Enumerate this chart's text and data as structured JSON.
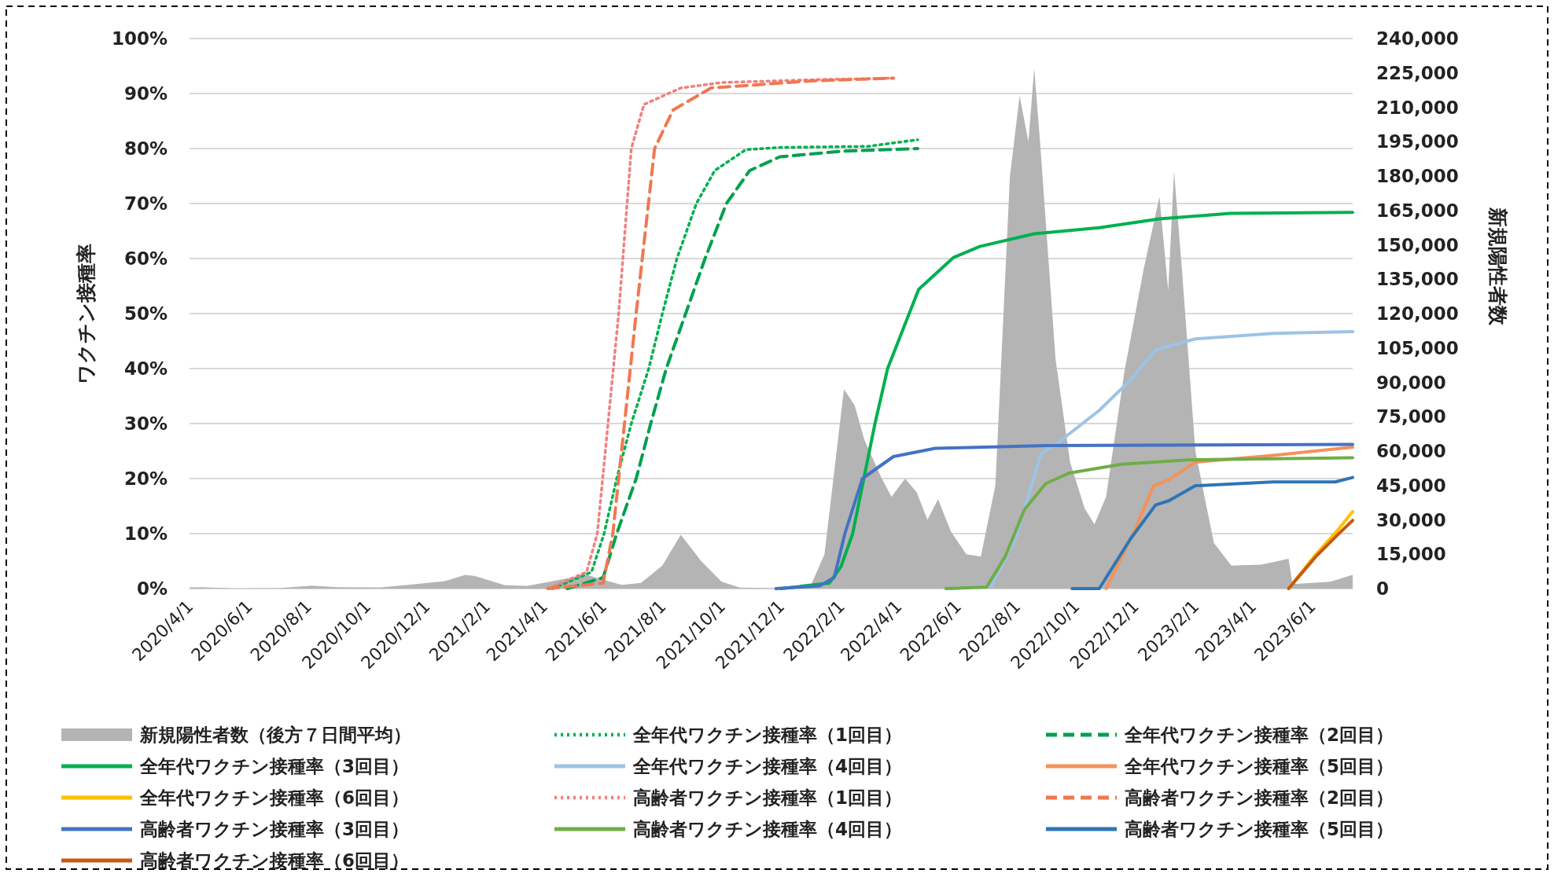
{
  "chart_data": {
    "type": "line",
    "ylabel": "ワクチン接種率",
    "y2label": "新規陽性者数",
    "grid": "y",
    "legend": "bottom",
    "xlim": [
      "2020-04-01",
      "2023-07-13"
    ],
    "xticks": [
      {
        "value": "2020-04-01",
        "label": "2020/4/1"
      },
      {
        "value": "2020-06-01",
        "label": "2020/6/1"
      },
      {
        "value": "2020-08-01",
        "label": "2020/8/1"
      },
      {
        "value": "2020-10-01",
        "label": "2020/10/1"
      },
      {
        "value": "2020-12-01",
        "label": "2020/12/1"
      },
      {
        "value": "2021-02-01",
        "label": "2021/2/1"
      },
      {
        "value": "2021-04-01",
        "label": "2021/4/1"
      },
      {
        "value": "2021-06-01",
        "label": "2021/6/1"
      },
      {
        "value": "2021-08-01",
        "label": "2021/8/1"
      },
      {
        "value": "2021-10-01",
        "label": "2021/10/1"
      },
      {
        "value": "2021-12-01",
        "label": "2021/12/1"
      },
      {
        "value": "2022-02-01",
        "label": "2022/2/1"
      },
      {
        "value": "2022-04-01",
        "label": "2022/4/1"
      },
      {
        "value": "2022-06-01",
        "label": "2022/6/1"
      },
      {
        "value": "2022-08-01",
        "label": "2022/8/1"
      },
      {
        "value": "2022-10-01",
        "label": "2022/10/1"
      },
      {
        "value": "2022-12-01",
        "label": "2022/12/1"
      },
      {
        "value": "2023-02-01",
        "label": "2023/2/1"
      },
      {
        "value": "2023-04-01",
        "label": "2023/4/1"
      },
      {
        "value": "2023-06-01",
        "label": "2023/6/1"
      }
    ],
    "ylim": [
      0,
      100
    ],
    "yticks": [
      {
        "value": 0,
        "label": "0%"
      },
      {
        "value": 10,
        "label": "10%"
      },
      {
        "value": 20,
        "label": "20%"
      },
      {
        "value": 30,
        "label": "30%"
      },
      {
        "value": 40,
        "label": "40%"
      },
      {
        "value": 50,
        "label": "50%"
      },
      {
        "value": 60,
        "label": "60%"
      },
      {
        "value": 70,
        "label": "70%"
      },
      {
        "value": 80,
        "label": "80%"
      },
      {
        "value": 90,
        "label": "90%"
      },
      {
        "value": 100,
        "label": "100%"
      }
    ],
    "y2lim": [
      0,
      240000
    ],
    "y2ticks": [
      {
        "value": 0,
        "label": "0"
      },
      {
        "value": 15000,
        "label": "15,000"
      },
      {
        "value": 30000,
        "label": "30,000"
      },
      {
        "value": 45000,
        "label": "45,000"
      },
      {
        "value": 60000,
        "label": "60,000"
      },
      {
        "value": 75000,
        "label": "75,000"
      },
      {
        "value": 90000,
        "label": "90,000"
      },
      {
        "value": 105000,
        "label": "105,000"
      },
      {
        "value": 120000,
        "label": "120,000"
      },
      {
        "value": 135000,
        "label": "135,000"
      },
      {
        "value": 150000,
        "label": "150,000"
      },
      {
        "value": 165000,
        "label": "165,000"
      },
      {
        "value": 180000,
        "label": "180,000"
      },
      {
        "value": 195000,
        "label": "195,000"
      },
      {
        "value": 210000,
        "label": "210,000"
      },
      {
        "value": 225000,
        "label": "225,000"
      },
      {
        "value": 240000,
        "label": "240,000"
      }
    ],
    "series": [
      {
        "name": "新規陽性者数（後方７日間平均）",
        "type": "area",
        "axis": "y2",
        "color": "#b4b4b4",
        "x": [
          "2020-04-01",
          "2020-04-15",
          "2020-05-15",
          "2020-07-01",
          "2020-08-05",
          "2020-09-01",
          "2020-10-15",
          "2020-11-20",
          "2020-12-20",
          "2021-01-10",
          "2021-01-20",
          "2021-02-20",
          "2021-03-15",
          "2021-04-25",
          "2021-05-15",
          "2021-06-20",
          "2021-07-10",
          "2021-08-01",
          "2021-08-20",
          "2021-09-10",
          "2021-10-01",
          "2021-10-20",
          "2021-12-01",
          "2021-12-31",
          "2022-01-15",
          "2022-02-04",
          "2022-02-15",
          "2022-02-25",
          "2022-03-15",
          "2022-03-25",
          "2022-04-08",
          "2022-04-20",
          "2022-05-01",
          "2022-05-12",
          "2022-05-25",
          "2022-06-10",
          "2022-06-25",
          "2022-07-10",
          "2022-07-25",
          "2022-08-04",
          "2022-08-13",
          "2022-08-19",
          "2022-08-25",
          "2022-09-10",
          "2022-09-25",
          "2022-10-10",
          "2022-10-20",
          "2022-11-01",
          "2022-11-20",
          "2022-12-10",
          "2022-12-26",
          "2023-01-04",
          "2023-01-10",
          "2023-01-18",
          "2023-02-01",
          "2023-02-20",
          "2023-03-10",
          "2023-04-10",
          "2023-05-08",
          "2023-05-12",
          "2023-06-20",
          "2023-07-13"
        ],
        "values": [
          500,
          600,
          100,
          200,
          1300,
          600,
          500,
          2000,
          3300,
          6000,
          5500,
          1500,
          1200,
          4500,
          6000,
          1600,
          2500,
          10000,
          23500,
          12000,
          3000,
          400,
          150,
          500,
          15000,
          87000,
          80000,
          65000,
          48000,
          40000,
          48000,
          42000,
          30000,
          39000,
          25000,
          15000,
          14000,
          45000,
          180000,
          215000,
          195000,
          227000,
          195000,
          100000,
          55000,
          35000,
          28000,
          40000,
          95000,
          140000,
          171000,
          130000,
          182000,
          140000,
          60000,
          20000,
          10000,
          10500,
          13000,
          2000,
          3000,
          6000
        ]
      },
      {
        "name": "全年代ワクチン接種率（1回目）",
        "color": "#00b050",
        "line_style": "dotted",
        "x": [
          "2021-04-10",
          "2021-05-20",
          "2021-06-02",
          "2021-06-15",
          "2021-06-30",
          "2021-07-18",
          "2021-08-01",
          "2021-08-16",
          "2021-09-05",
          "2021-09-24",
          "2021-10-26",
          "2021-12-01",
          "2022-03-01",
          "2022-04-21"
        ],
        "values": [
          0,
          3,
          10,
          20,
          30,
          40,
          50,
          60,
          70,
          76,
          79.8,
          80.2,
          80.4,
          81.6
        ]
      },
      {
        "name": "全年代ワクチン接種率（2回目）",
        "color": "#00a050",
        "line_style": "dashed",
        "x": [
          "2021-04-25",
          "2021-06-01",
          "2021-06-15",
          "2021-07-05",
          "2021-07-20",
          "2021-08-05",
          "2021-08-25",
          "2021-09-14",
          "2021-10-06",
          "2021-10-30",
          "2021-11-30",
          "2022-02-01",
          "2022-04-21"
        ],
        "values": [
          0,
          2,
          10,
          20,
          30,
          40,
          50,
          60,
          70,
          76,
          78.5,
          79.5,
          80
        ]
      },
      {
        "name": "全年代ワクチン接種率（3回目）",
        "color": "#00b050",
        "line_style": "solid",
        "x": [
          "2021-12-01",
          "2022-01-20",
          "2022-02-01",
          "2022-02-13",
          "2022-03-08",
          "2022-03-21",
          "2022-04-22",
          "2022-05-28",
          "2022-06-24",
          "2022-08-19",
          "2022-10-25",
          "2022-12-26",
          "2023-03-09",
          "2023-07-13"
        ],
        "values": [
          0,
          1,
          4,
          10,
          30,
          40,
          54.4,
          60.2,
          62.2,
          64.5,
          65.6,
          67.2,
          68.2,
          68.4
        ]
      },
      {
        "name": "全年代ワクチン接種率（4回目）",
        "color": "#9dc3e6",
        "line_style": "solid",
        "x": [
          "2022-05-25",
          "2022-07-06",
          "2022-07-30",
          "2022-08-26",
          "2022-09-13",
          "2022-10-25",
          "2022-11-26",
          "2022-12-22",
          "2023-02-01",
          "2023-04-22",
          "2023-07-13"
        ],
        "values": [
          0,
          0.5,
          8.8,
          24.5,
          26.6,
          32.4,
          37.9,
          43.4,
          45.4,
          46.4,
          46.7
        ]
      },
      {
        "name": "全年代ワクチン接種率（5回目）",
        "color": "#f4925a",
        "line_style": "solid",
        "x": [
          "2022-11-01",
          "2022-11-30",
          "2022-12-20",
          "2023-01-05",
          "2023-02-01",
          "2023-04-22",
          "2023-07-13"
        ],
        "values": [
          0,
          10.4,
          18.7,
          19.8,
          23,
          24.2,
          25.7
        ]
      },
      {
        "name": "全年代ワクチン接種率（6回目）",
        "color": "#ffc000",
        "line_style": "solid",
        "x": [
          "2023-05-08",
          "2023-06-05",
          "2023-06-27",
          "2023-07-13"
        ],
        "values": [
          0,
          6.2,
          10.5,
          14
        ]
      },
      {
        "name": "高齢者ワクチン接種率（1回目）",
        "color": "#f08080",
        "line_style": "dotted",
        "x": [
          "2021-04-05",
          "2021-05-15",
          "2021-05-26",
          "2021-06-17",
          "2021-06-30",
          "2021-07-13",
          "2021-08-20",
          "2021-10-01",
          "2022-01-01",
          "2022-03-27"
        ],
        "values": [
          0,
          3,
          10,
          50,
          80,
          88,
          91,
          92,
          92.5,
          92.8
        ]
      },
      {
        "name": "高齢者ワクチン接種率（2回目）",
        "color": "#f07850",
        "line_style": "dashed",
        "x": [
          "2021-04-05",
          "2021-06-01",
          "2021-06-11",
          "2021-07-05",
          "2021-07-24",
          "2021-08-12",
          "2021-09-20",
          "2022-01-01",
          "2022-03-27"
        ],
        "values": [
          0,
          1,
          10,
          50,
          80,
          87,
          91,
          92.3,
          92.8
        ]
      },
      {
        "name": "高齢者ワクチン接種率（3回目）",
        "color": "#4472c4",
        "line_style": "solid",
        "x": [
          "2021-11-26",
          "2022-01-10",
          "2022-01-25",
          "2022-02-05",
          "2022-02-23",
          "2022-03-27",
          "2022-05-09",
          "2022-09-01",
          "2023-07-13"
        ],
        "values": [
          0,
          0.5,
          2,
          10,
          20,
          24,
          25.5,
          26,
          26.2
        ]
      },
      {
        "name": "高齢者ワクチン接種率（4回目）",
        "color": "#70ad47",
        "line_style": "solid",
        "x": [
          "2022-05-20",
          "2022-07-01",
          "2022-07-20",
          "2022-08-09",
          "2022-08-31",
          "2022-09-24",
          "2022-11-17",
          "2023-01-24",
          "2023-07-13"
        ],
        "values": [
          0,
          0.3,
          5.8,
          14.4,
          19.1,
          21,
          22.6,
          23.4,
          23.8
        ]
      },
      {
        "name": "高齢者ワクチン接種率（5回目）",
        "color": "#2e75b6",
        "line_style": "solid",
        "x": [
          "2022-09-27",
          "2022-10-25",
          "2022-11-26",
          "2022-12-22",
          "2023-01-05",
          "2023-02-01",
          "2023-04-22",
          "2023-06-25",
          "2023-07-13"
        ],
        "values": [
          0,
          0,
          9,
          15.2,
          16,
          18.7,
          19.4,
          19.4,
          20.2
        ]
      },
      {
        "name": "高齢者ワクチン接種率（6回目）",
        "color": "#c55a11",
        "line_style": "solid",
        "x": [
          "2023-05-08",
          "2023-06-05",
          "2023-06-27",
          "2023-07-13"
        ],
        "values": [
          0,
          5.8,
          9.7,
          12.4
        ]
      }
    ]
  }
}
